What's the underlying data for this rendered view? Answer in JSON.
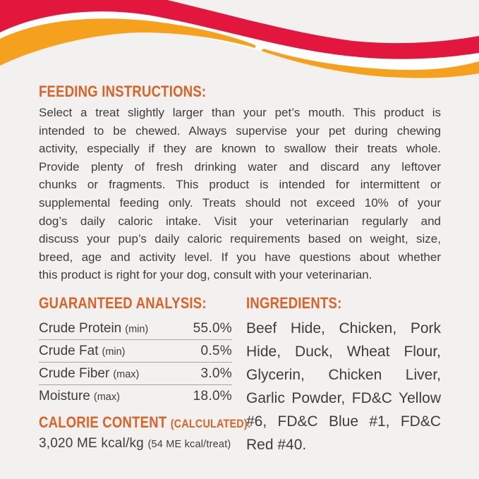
{
  "colors": {
    "background": "#f2f1ef",
    "body_text": "#3d3d3d",
    "accent": "#dd6227",
    "wave_red": "#e3173e",
    "wave_orange": "#f6a11d",
    "wave_gap": "#ffffff",
    "separator": "#a3a3a3"
  },
  "feeding": {
    "heading": "FEEDING INSTRUCTIONS:",
    "lines": [
      "Select a treat slightly larger than your pet’s mouth. This product is",
      "intended to be chewed. Always supervise your pet during chewing",
      "activity, especially if they are known to swallow their treats whole.",
      "Provide plenty of fresh drinking water and discard any leftover",
      "chunks or fragments. This product is intended for intermittent or",
      "supplemental feeding only. Treats should not exceed 10% of your",
      "dog’s daily caloric intake. Visit your veterinarian regularly and",
      "discuss your pup’s daily caloric requirements based on weight, size,",
      "breed, age and activity level. If you have questions about whether",
      "this product is right for your dog, consult with your veterinarian."
    ]
  },
  "analysis": {
    "heading": "GUARANTEED ANALYSIS:",
    "rows": [
      {
        "label": "Crude Protein",
        "qualifier": "(min)",
        "value": "55.0%"
      },
      {
        "label": "Crude Fat",
        "qualifier": "(min)",
        "value": "0.5%"
      },
      {
        "label": "Crude Fiber",
        "qualifier": "(max)",
        "value": "3.0%"
      },
      {
        "label": "Moisture",
        "qualifier": "(max)",
        "value": "18.0%"
      }
    ]
  },
  "calorie": {
    "heading": "CALORIE CONTENT",
    "heading_qualifier": "(CALCULATED):",
    "value": "3,020 ME kcal/kg",
    "per_treat": "(54 ME kcal/treat)"
  },
  "ingredients": {
    "heading": "INGREDIENTS:",
    "lines": [
      "Beef Hide, Chicken, Pork",
      "Hide, Duck, Wheat Flour,",
      "Glycerin, Chicken Liver,",
      "Garlic Powder, FD&C Yellow",
      "#6, FD&C Blue #1, FD&C",
      "Red #40."
    ]
  }
}
